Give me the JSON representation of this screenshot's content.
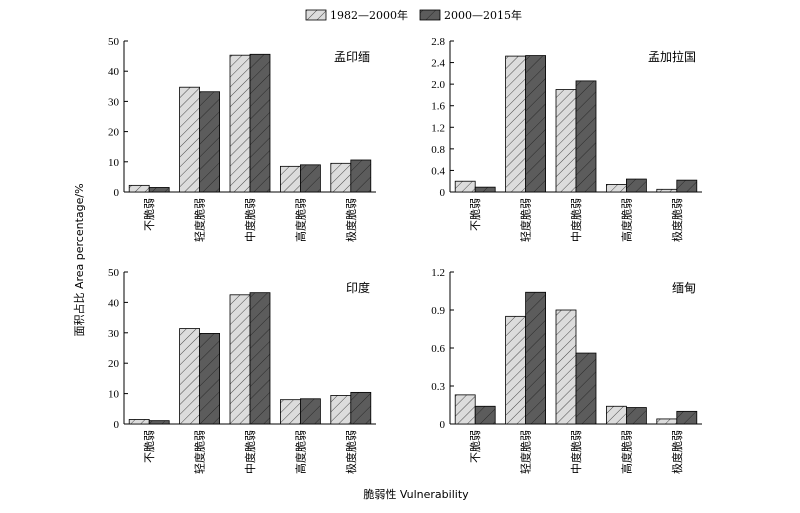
{
  "legend": {
    "series1": "1982—2000年",
    "series2": "2000—2015年"
  },
  "axes": {
    "ylabel": "面积占比 Area percentage/%",
    "xlabel": "脆弱性 Vulnerability"
  },
  "colors": {
    "series1_fill": "#d9d9d9",
    "series2_fill": "#5a5a5a",
    "hatch": "#333333"
  },
  "chart_data": [
    {
      "type": "bar",
      "title": "孟印缅",
      "categories": [
        "不脆弱",
        "轻度脆弱",
        "中度脆弱",
        "高度脆弱",
        "极度脆弱"
      ],
      "ylim": [
        0,
        50
      ],
      "yticks": [
        0,
        10,
        20,
        30,
        40,
        50
      ],
      "ytick_labels": [
        "0",
        "10",
        "20",
        "30",
        "40",
        "50"
      ],
      "series": [
        {
          "name": "1982—2000年",
          "values": [
            2.2,
            34.7,
            45.3,
            8.5,
            9.5
          ]
        },
        {
          "name": "2000—2015年",
          "values": [
            1.5,
            33.2,
            45.6,
            9.0,
            10.6
          ]
        }
      ]
    },
    {
      "type": "bar",
      "title": "孟加拉国",
      "categories": [
        "不脆弱",
        "轻度脆弱",
        "中度脆弱",
        "高度脆弱",
        "极度脆弱"
      ],
      "ylim": [
        0,
        2.8
      ],
      "yticks": [
        0,
        0.4,
        0.8,
        1.2,
        1.6,
        2.0,
        2.4,
        2.8
      ],
      "ytick_labels": [
        "0",
        "0.4",
        "0.8",
        "1.2",
        "1.6",
        "2.0",
        "2.4",
        "2.8"
      ],
      "series": [
        {
          "name": "1982—2000年",
          "values": [
            0.2,
            2.52,
            1.9,
            0.14,
            0.05
          ]
        },
        {
          "name": "2000—2015年",
          "values": [
            0.09,
            2.53,
            2.06,
            0.24,
            0.22
          ]
        }
      ]
    },
    {
      "type": "bar",
      "title": "印度",
      "categories": [
        "不脆弱",
        "轻度脆弱",
        "中度脆弱",
        "高度脆弱",
        "极度脆弱"
      ],
      "ylim": [
        0,
        50
      ],
      "yticks": [
        0,
        10,
        20,
        30,
        40,
        50
      ],
      "ytick_labels": [
        "0",
        "10",
        "20",
        "30",
        "40",
        "50"
      ],
      "series": [
        {
          "name": "1982—2000年",
          "values": [
            1.5,
            31.4,
            42.5,
            8.0,
            9.4
          ]
        },
        {
          "name": "2000—2015年",
          "values": [
            1.1,
            29.8,
            43.2,
            8.3,
            10.4
          ]
        }
      ]
    },
    {
      "type": "bar",
      "title": "缅甸",
      "categories": [
        "不脆弱",
        "轻度脆弱",
        "中度脆弱",
        "高度脆弱",
        "极度脆弱"
      ],
      "ylim": [
        0,
        1.2
      ],
      "yticks": [
        0,
        0.3,
        0.6,
        0.9,
        1.2
      ],
      "ytick_labels": [
        "0",
        "0.3",
        "0.6",
        "0.9",
        "1.2"
      ],
      "series": [
        {
          "name": "1982—2000年",
          "values": [
            0.23,
            0.85,
            0.9,
            0.14,
            0.04
          ]
        },
        {
          "name": "2000—2015年",
          "values": [
            0.14,
            1.04,
            0.56,
            0.13,
            0.1
          ]
        }
      ]
    }
  ]
}
